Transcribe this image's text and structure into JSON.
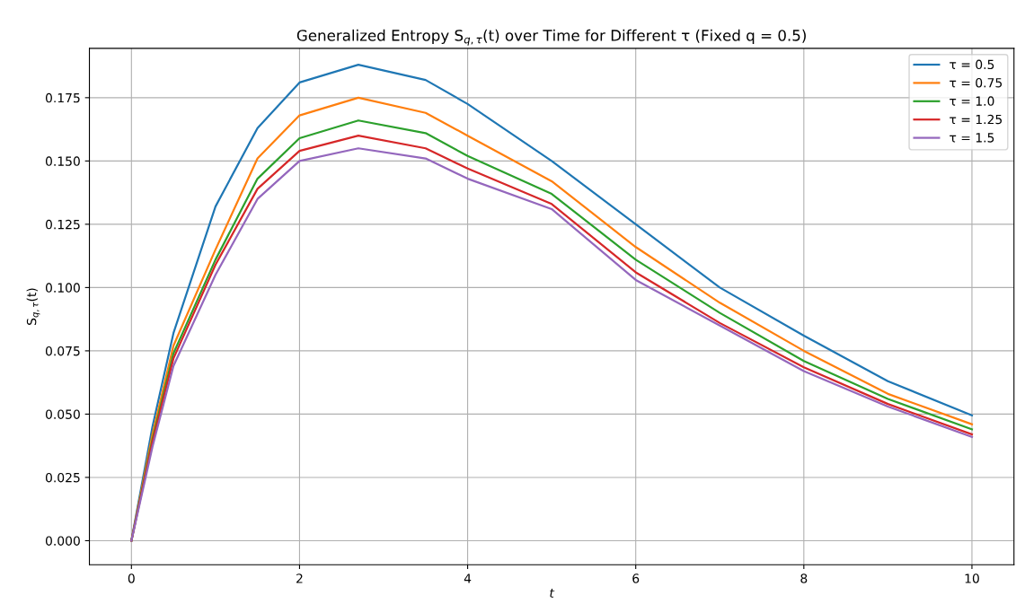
{
  "chart_data": {
    "type": "line",
    "title": "Generalized Entropy S$_{q,τ}$(t) over Time for Different τ (Fixed q = 0.5)",
    "xlabel": "t",
    "ylabel": "S$_{q,τ}$(t)",
    "x": [
      0,
      0.25,
      0.5,
      1,
      1.5,
      2,
      2.7,
      3.5,
      4,
      5,
      6,
      7,
      8,
      9,
      10
    ],
    "series": [
      {
        "name": "τ = 0.5",
        "color": "#1f77b4",
        "values": [
          0,
          0.045,
          0.082,
          0.132,
          0.163,
          0.181,
          0.188,
          0.182,
          0.1725,
          0.15,
          0.125,
          0.1,
          0.081,
          0.063,
          0.0495
        ]
      },
      {
        "name": "τ = 0.75",
        "color": "#ff7f0e",
        "values": [
          0,
          0.042,
          0.077,
          0.115,
          0.151,
          0.168,
          0.175,
          0.169,
          0.16,
          0.142,
          0.116,
          0.094,
          0.075,
          0.058,
          0.046
        ]
      },
      {
        "name": "τ = 1.0",
        "color": "#2ca02c",
        "values": [
          0,
          0.04,
          0.074,
          0.111,
          0.143,
          0.159,
          0.166,
          0.161,
          0.152,
          0.137,
          0.111,
          0.09,
          0.071,
          0.056,
          0.044
        ]
      },
      {
        "name": "τ = 1.25",
        "color": "#d62728",
        "values": [
          0,
          0.039,
          0.072,
          0.109,
          0.139,
          0.154,
          0.16,
          0.155,
          0.147,
          0.133,
          0.106,
          0.086,
          0.0685,
          0.054,
          0.042
        ]
      },
      {
        "name": "τ = 1.5",
        "color": "#9467bd",
        "values": [
          0,
          0.037,
          0.069,
          0.105,
          0.135,
          0.15,
          0.155,
          0.151,
          0.143,
          0.131,
          0.103,
          0.085,
          0.067,
          0.053,
          0.041
        ]
      }
    ],
    "xlim": [
      -0.5,
      10.5
    ],
    "xticks": [
      0,
      2,
      4,
      6,
      8,
      10
    ],
    "ylim": [
      -0.0095,
      0.1945
    ],
    "yticks": [
      {
        "value": 0,
        "label": "0.000"
      },
      {
        "value": 0.025,
        "label": "0.025"
      },
      {
        "value": 0.05,
        "label": "0.050"
      },
      {
        "value": 0.075,
        "label": "0.075"
      },
      {
        "value": 0.1,
        "label": "0.100"
      },
      {
        "value": 0.125,
        "label": "0.125"
      },
      {
        "value": 0.15,
        "label": "0.150"
      },
      {
        "value": 0.175,
        "label": "0.175"
      }
    ],
    "grid": true,
    "legend": "top right",
    "marker": "none",
    "line_style": "solid"
  }
}
